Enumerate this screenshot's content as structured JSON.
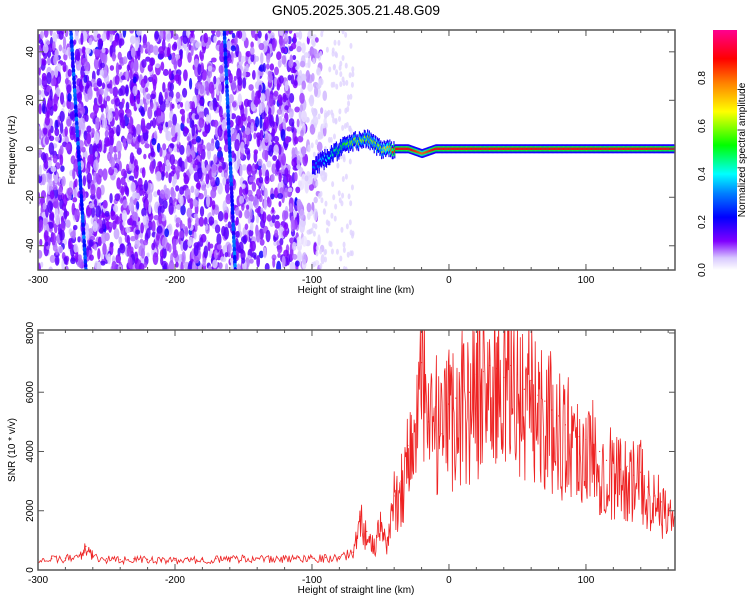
{
  "title": "GN05.2025.305.21.48.G09",
  "chart_data": [
    {
      "type": "heatmap",
      "xlabel": "Height of straight line (km)",
      "ylabel": "Frequency (Hz)",
      "xlim": [
        -300,
        165
      ],
      "ylim": [
        -50,
        49
      ],
      "xticks": [
        "-300",
        "-200",
        "-100",
        "0",
        "100"
      ],
      "xtick_values": [
        -300,
        -200,
        -100,
        0,
        100
      ],
      "yticks": [
        "-40",
        "-20",
        "0",
        "20",
        "40"
      ],
      "ytick_values": [
        -40,
        -20,
        0,
        20,
        40
      ],
      "colorbar": {
        "label": "Normalized spectral amplitude",
        "range": [
          0,
          1
        ],
        "ticks": [
          "0.0",
          "0.2",
          "0.4",
          "0.6",
          "0.8"
        ],
        "tick_values": [
          0,
          0.2,
          0.4,
          0.6,
          0.8
        ]
      },
      "features": {
        "noise_region_km": [
          -300,
          -100
        ],
        "noise_amplitude": 0.15,
        "streaks": [
          {
            "x_top_km": -276,
            "x_bottom_km": -265,
            "amplitude": 0.3
          },
          {
            "x_top_km": -164,
            "x_bottom_km": -156,
            "amplitude": 0.3
          }
        ],
        "signal_track": {
          "start_km": -100,
          "end_km": 165,
          "x_km": [
            -100,
            -90,
            -80,
            -70,
            -60,
            -50,
            -40,
            -30,
            -20,
            -10,
            0,
            50,
            100,
            165
          ],
          "freq_hz": [
            -8,
            -4,
            0,
            3,
            4,
            0,
            0,
            0,
            -2,
            0,
            0,
            0,
            0,
            0
          ],
          "peak_amplitude": [
            0.3,
            0.4,
            0.5,
            0.6,
            0.6,
            0.6,
            0.9,
            0.9,
            0.8,
            0.9,
            0.9,
            0.9,
            0.9,
            0.9
          ]
        }
      }
    },
    {
      "type": "line",
      "xlabel": "Height of straight line (km)",
      "ylabel": "SNR (10 * v/v)",
      "xlim": [
        -300,
        165
      ],
      "ylim": [
        0,
        8100
      ],
      "xticks": [
        "-300",
        "-200",
        "-100",
        "0",
        "100"
      ],
      "xtick_values": [
        -300,
        -200,
        -100,
        0,
        100
      ],
      "yticks": [
        "0",
        "2000",
        "4000",
        "6000",
        "8000"
      ],
      "ytick_values": [
        0,
        2000,
        4000,
        6000,
        8000
      ],
      "series": [
        {
          "name": "SNR",
          "color": "#ee2222",
          "x": [
            -300,
            -290,
            -280,
            -270,
            -265,
            -260,
            -250,
            -240,
            -230,
            -220,
            -210,
            -200,
            -190,
            -180,
            -170,
            -160,
            -150,
            -140,
            -130,
            -120,
            -110,
            -100,
            -90,
            -80,
            -70,
            -65,
            -60,
            -55,
            -50,
            -45,
            -40,
            -35,
            -30,
            -25,
            -20,
            -15,
            -10,
            -5,
            0,
            5,
            10,
            15,
            20,
            25,
            30,
            35,
            40,
            45,
            50,
            55,
            60,
            65,
            70,
            75,
            80,
            85,
            90,
            95,
            100,
            105,
            110,
            115,
            120,
            125,
            130,
            135,
            140,
            145,
            150,
            155,
            160,
            165
          ],
          "values": [
            350,
            380,
            400,
            500,
            800,
            500,
            380,
            350,
            380,
            360,
            340,
            330,
            350,
            360,
            380,
            400,
            420,
            400,
            380,
            400,
            420,
            450,
            420,
            450,
            600,
            1800,
            1300,
            800,
            1500,
            1000,
            2500,
            3000,
            4200,
            4800,
            7000,
            5000,
            5500,
            4600,
            5600,
            5800,
            6200,
            6000,
            6600,
            6700,
            6900,
            6800,
            6500,
            6900,
            6600,
            6100,
            6400,
            5900,
            5700,
            5400,
            5200,
            4900,
            5000,
            4500,
            4400,
            4300,
            4000,
            3700,
            3600,
            3400,
            3500,
            3200,
            3300,
            2800,
            2500,
            2300,
            2000,
            1900
          ]
        }
      ]
    }
  ]
}
